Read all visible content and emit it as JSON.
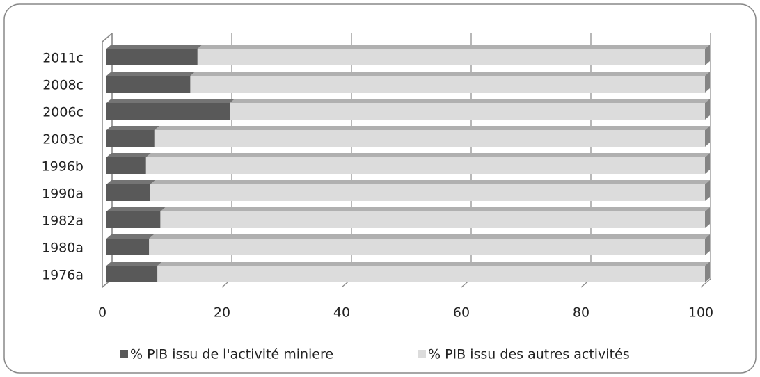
{
  "chart_data": {
    "type": "bar3d_stacked_horizontal",
    "categories": [
      "2011c",
      "2008c",
      "2006c",
      "2003c",
      "1996b",
      "1990a",
      "1982a",
      "1980a",
      "1976a"
    ],
    "series": [
      {
        "name": "% PIB issu de l'activité miniere",
        "color": "#595959",
        "values": [
          15.2,
          14.0,
          20.6,
          8.0,
          6.6,
          7.3,
          9.0,
          7.1,
          8.5
        ]
      },
      {
        "name": "% PIB issu des autres activités",
        "color": "#dcdcdc",
        "values": [
          84.8,
          86.0,
          79.4,
          92.0,
          93.4,
          92.7,
          91.0,
          92.9,
          91.5
        ]
      }
    ],
    "xlim": [
      0,
      100
    ],
    "xticks": [
      0,
      20,
      40,
      60,
      80,
      100
    ],
    "grid": true,
    "legend": "bottom"
  }
}
